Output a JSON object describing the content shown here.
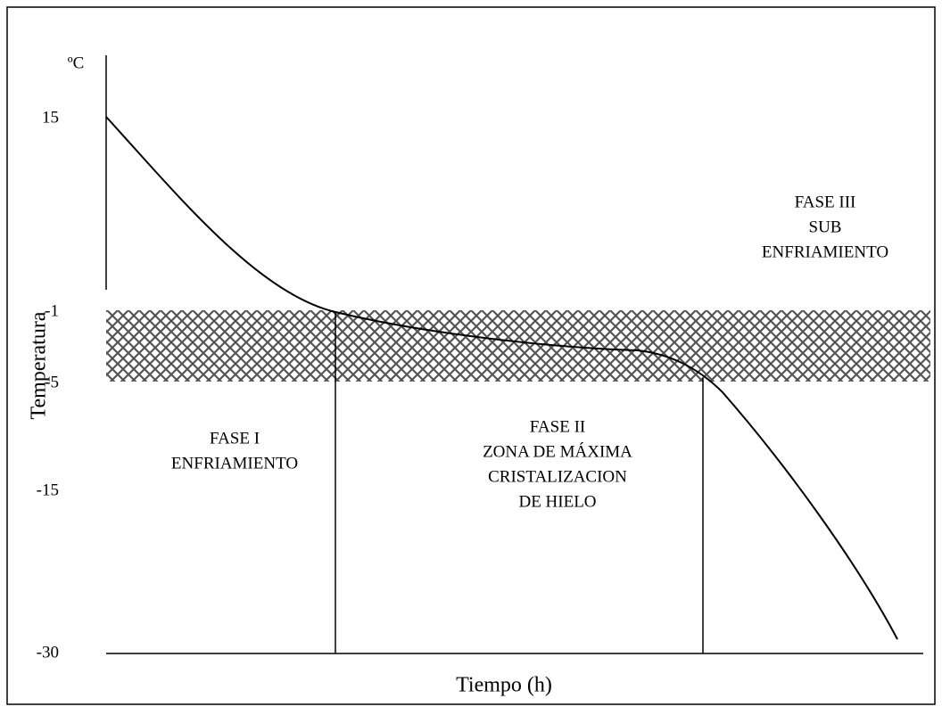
{
  "axis": {
    "y_unit": "ºC",
    "y_label": "Temperatura",
    "x_label": "Tiempo (h)",
    "y_ticks": [
      "15",
      "-1",
      "-5",
      "-15",
      "-30"
    ]
  },
  "phases": [
    {
      "lines": [
        "FASE I",
        "ENFRIAMIENTO"
      ]
    },
    {
      "lines": [
        "FASE II",
        "ZONA DE MÁXIMA",
        "CRISTALIZACION",
        "DE HIELO"
      ]
    },
    {
      "lines": [
        "FASE III",
        "SUB",
        "ENFRIAMIENTO"
      ]
    }
  ]
}
